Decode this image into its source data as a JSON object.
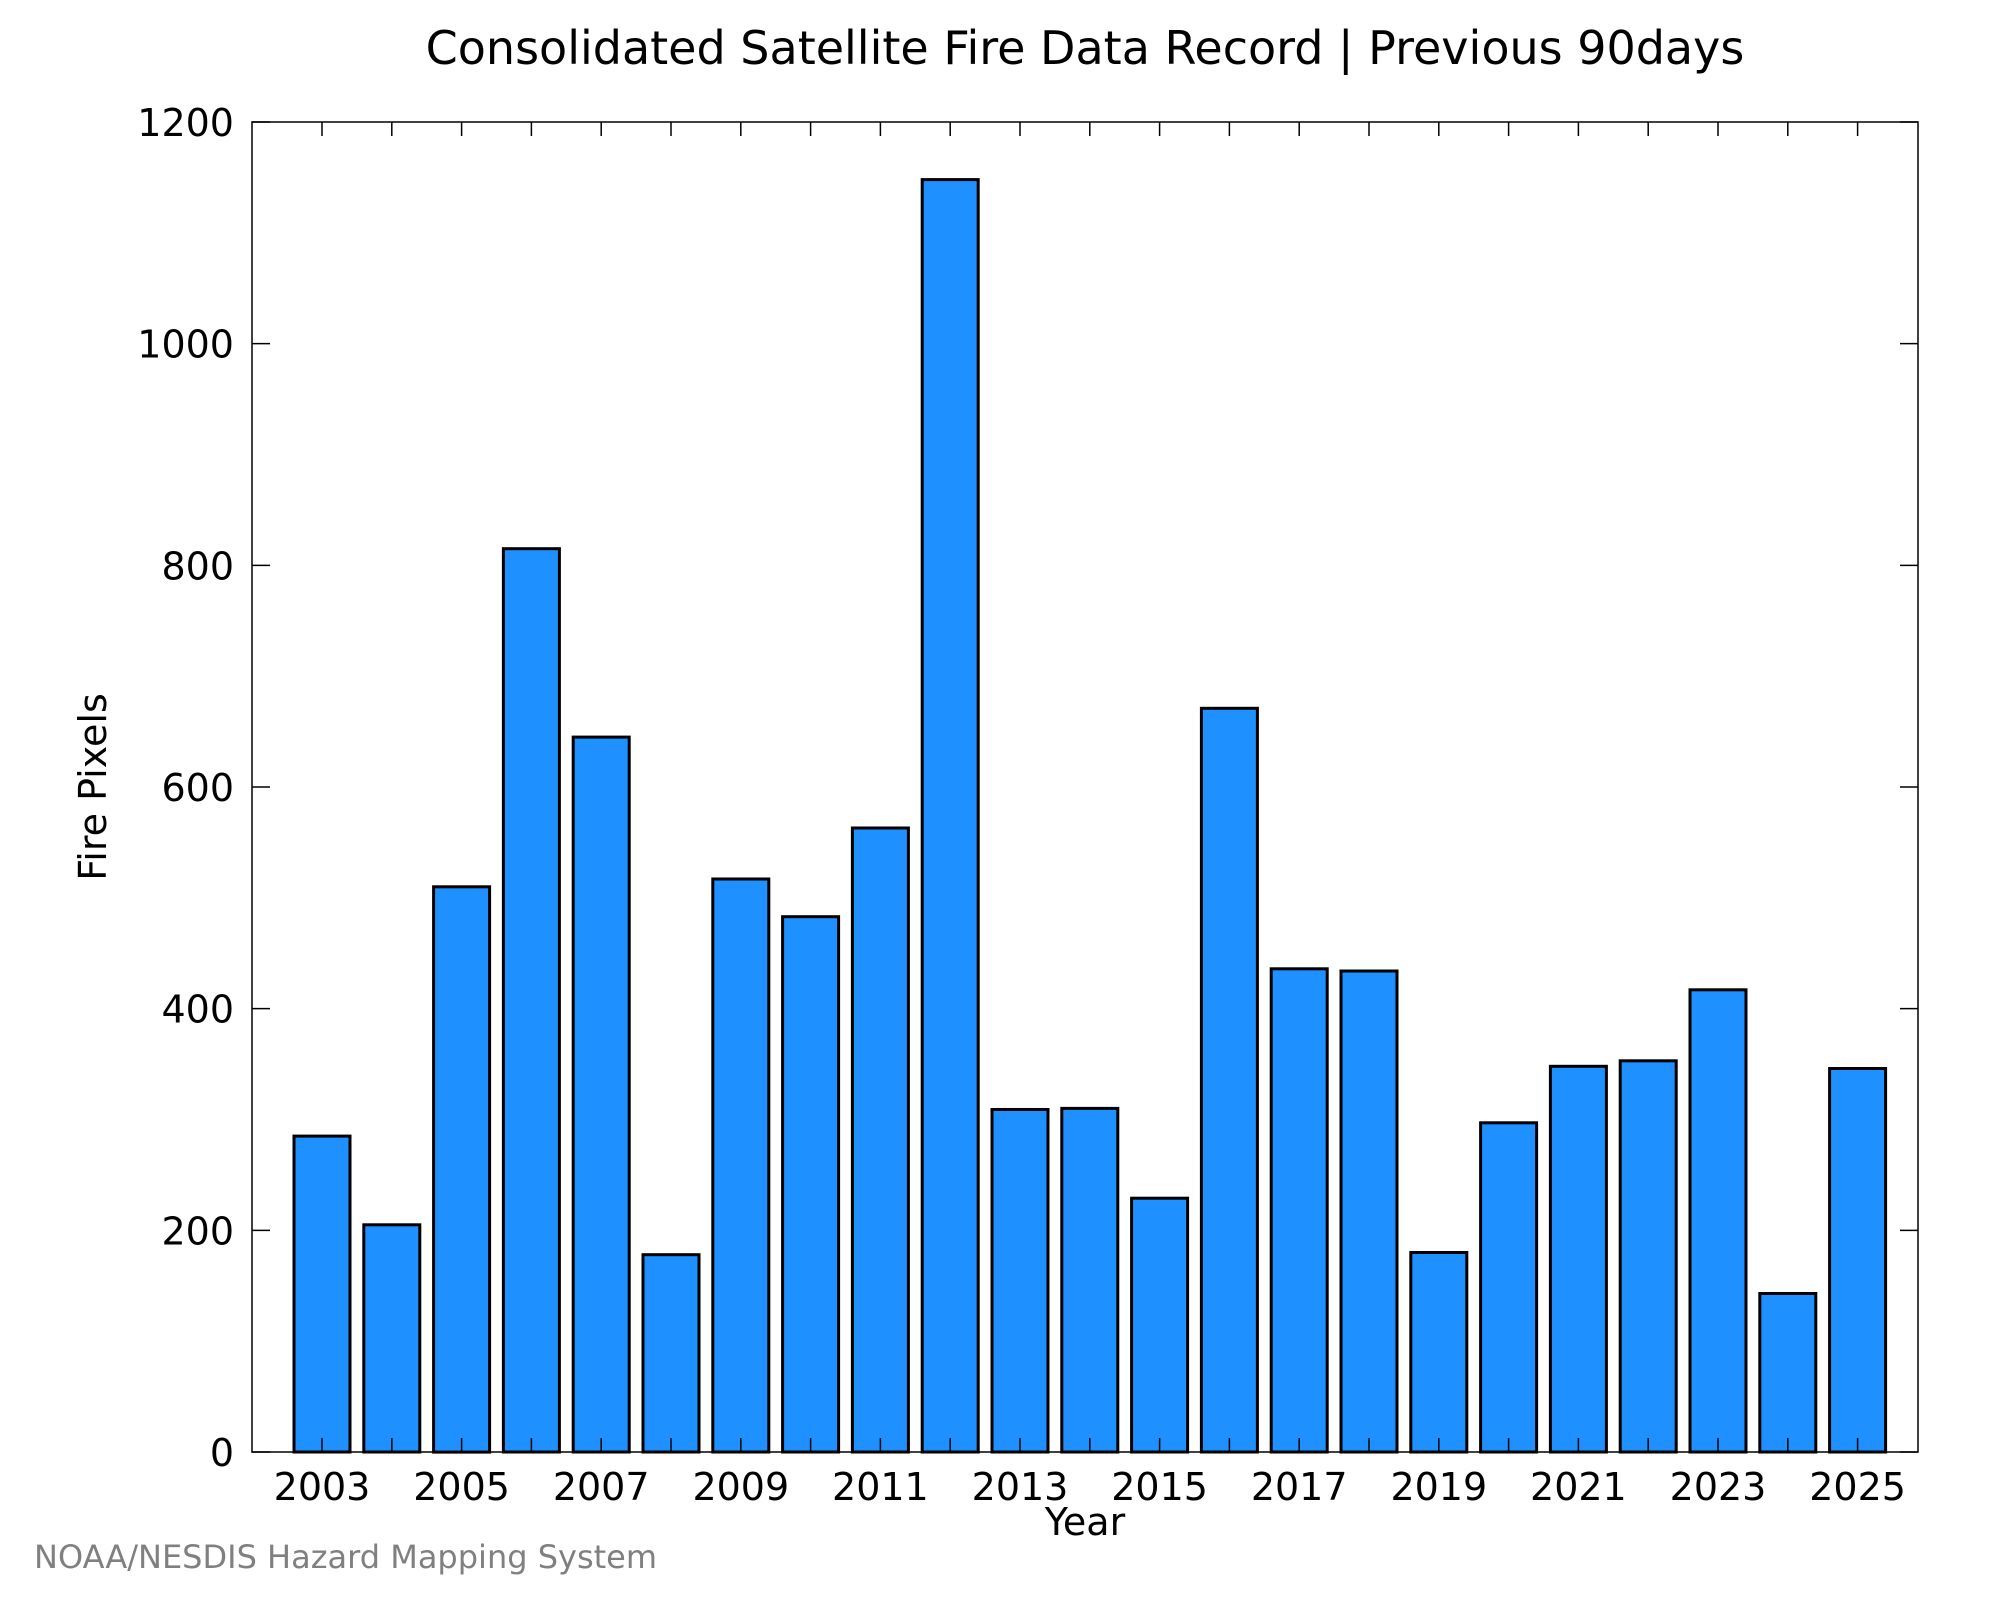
{
  "chart_data": {
    "type": "bar",
    "title": "Consolidated Satellite Fire Data Record | Previous 90days",
    "xlabel": "Year",
    "ylabel": "Fire Pixels",
    "categories": [
      "2003",
      "2004",
      "2005",
      "2006",
      "2007",
      "2008",
      "2009",
      "2010",
      "2011",
      "2012",
      "2013",
      "2014",
      "2015",
      "2016",
      "2017",
      "2018",
      "2019",
      "2020",
      "2021",
      "2022",
      "2023",
      "2024",
      "2025"
    ],
    "values": [
      285,
      205,
      510,
      815,
      645,
      178,
      517,
      483,
      563,
      1148,
      309,
      310,
      229,
      671,
      436,
      434,
      180,
      297,
      348,
      353,
      417,
      143,
      346
    ],
    "ylim": [
      0,
      1200
    ],
    "yticks": [
      0,
      200,
      400,
      600,
      800,
      1000,
      1200
    ],
    "xticks_labeled": [
      "2003",
      "2005",
      "2007",
      "2009",
      "2011",
      "2013",
      "2015",
      "2017",
      "2019",
      "2021",
      "2023",
      "2025"
    ],
    "bar_color": "#1e90ff",
    "grid": false
  },
  "footer": "NOAA/NESDIS Hazard Mapping System"
}
